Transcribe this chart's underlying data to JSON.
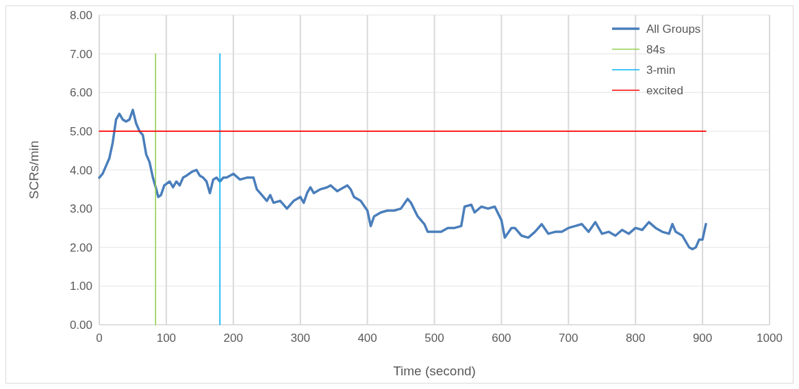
{
  "chart_data": {
    "type": "line",
    "xlabel": "Time (second)",
    "ylabel": "SCRs/min",
    "xlim": [
      0,
      1000
    ],
    "xticks": [
      0,
      100,
      200,
      300,
      400,
      500,
      600,
      700,
      800,
      900,
      1000
    ],
    "ylim": [
      0,
      8
    ],
    "yticks": [
      {
        "value": 0,
        "label": "0.00"
      },
      {
        "value": 1,
        "label": "1.00"
      },
      {
        "value": 2,
        "label": "2.00"
      },
      {
        "value": 3,
        "label": "3.00"
      },
      {
        "value": 4,
        "label": "4.00"
      },
      {
        "value": 5,
        "label": "5.00"
      },
      {
        "value": 6,
        "label": "6.00"
      },
      {
        "value": 7,
        "label": "7.00"
      },
      {
        "value": 8,
        "label": "8.00"
      }
    ],
    "grid": true,
    "legend": "top right",
    "series": [
      {
        "name": "All Groups",
        "color": "#4a7ebb",
        "x": [
          0,
          5,
          10,
          15,
          20,
          25,
          30,
          35,
          40,
          45,
          50,
          55,
          60,
          65,
          70,
          75,
          80,
          85,
          88,
          92,
          97,
          105,
          110,
          115,
          120,
          125,
          130,
          138,
          145,
          150,
          155,
          160,
          165,
          170,
          175,
          180,
          185,
          190,
          195,
          200,
          210,
          220,
          230,
          235,
          240,
          245,
          250,
          255,
          260,
          270,
          280,
          290,
          300,
          305,
          310,
          315,
          320,
          330,
          340,
          345,
          355,
          360,
          370,
          375,
          380,
          390,
          400,
          405,
          410,
          420,
          430,
          440,
          450,
          460,
          465,
          475,
          485,
          490,
          500,
          510,
          520,
          530,
          540,
          545,
          555,
          560,
          570,
          580,
          590,
          600,
          605,
          615,
          620,
          630,
          640,
          650,
          660,
          670,
          680,
          690,
          700,
          710,
          720,
          730,
          740,
          750,
          760,
          770,
          780,
          790,
          800,
          810,
          820,
          830,
          840,
          850,
          855,
          860,
          870,
          880,
          885,
          890,
          895,
          900,
          905
        ],
        "values": [
          3.8,
          3.9,
          4.1,
          4.3,
          4.7,
          5.3,
          5.45,
          5.3,
          5.25,
          5.3,
          5.55,
          5.2,
          5.0,
          4.9,
          4.4,
          4.2,
          3.8,
          3.5,
          3.3,
          3.35,
          3.6,
          3.7,
          3.55,
          3.7,
          3.6,
          3.8,
          3.85,
          3.95,
          4.0,
          3.85,
          3.8,
          3.7,
          3.4,
          3.75,
          3.8,
          3.7,
          3.8,
          3.8,
          3.85,
          3.9,
          3.75,
          3.8,
          3.8,
          3.5,
          3.4,
          3.3,
          3.2,
          3.35,
          3.15,
          3.2,
          3.0,
          3.2,
          3.3,
          3.15,
          3.4,
          3.55,
          3.4,
          3.5,
          3.55,
          3.6,
          3.45,
          3.5,
          3.6,
          3.5,
          3.3,
          3.2,
          2.95,
          2.55,
          2.8,
          2.9,
          2.95,
          2.95,
          3.0,
          3.25,
          3.15,
          2.8,
          2.6,
          2.4,
          2.4,
          2.4,
          2.5,
          2.5,
          2.55,
          3.05,
          3.1,
          2.9,
          3.05,
          3.0,
          3.05,
          2.7,
          2.25,
          2.5,
          2.5,
          2.3,
          2.25,
          2.4,
          2.6,
          2.35,
          2.4,
          2.4,
          2.5,
          2.55,
          2.6,
          2.4,
          2.65,
          2.35,
          2.4,
          2.3,
          2.45,
          2.35,
          2.5,
          2.45,
          2.65,
          2.5,
          2.4,
          2.35,
          2.6,
          2.4,
          2.3,
          2.0,
          1.95,
          2.0,
          2.2,
          2.2,
          2.6
        ]
      },
      {
        "name": "84s",
        "color": "#92d050",
        "x": [
          84,
          84
        ],
        "values": [
          0,
          7
        ]
      },
      {
        "name": "3-min",
        "color": "#00b0f0",
        "x": [
          180,
          180
        ],
        "values": [
          0,
          7
        ]
      },
      {
        "name": "excited",
        "color": "#ff0000",
        "x": [
          0,
          905
        ],
        "values": [
          5,
          5
        ]
      }
    ]
  }
}
